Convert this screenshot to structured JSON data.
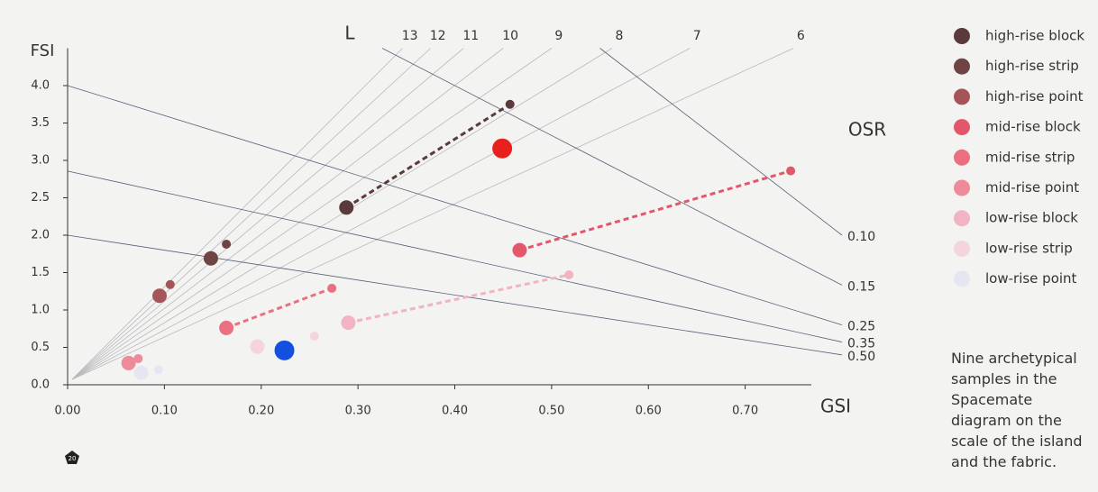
{
  "chart_data": {
    "type": "scatter",
    "x_label": "GSI",
    "y_label": "FSI",
    "l_label": "L",
    "osr_label": "OSR",
    "xlim": [
      0,
      0.8
    ],
    "ylim": [
      0,
      4.5
    ],
    "xticks": [
      {
        "value": 0,
        "label": "0.00"
      },
      {
        "value": 0.1,
        "label": "0.10"
      },
      {
        "value": 0.2,
        "label": "0.20"
      },
      {
        "value": 0.3,
        "label": "0.30"
      },
      {
        "value": 0.4,
        "label": "0.40"
      },
      {
        "value": 0.5,
        "label": "0.50"
      },
      {
        "value": 0.6,
        "label": "0.60"
      },
      {
        "value": 0.7,
        "label": "0.70"
      }
    ],
    "yticks": [
      {
        "value": 0,
        "label": "0.0"
      },
      0.5,
      {
        "value": 1,
        "label": "1.0"
      },
      1.5,
      {
        "value": 2,
        "label": "2.0"
      },
      2.5,
      {
        "value": 3,
        "label": "3.0"
      },
      3.5,
      {
        "value": 4,
        "label": "4.0"
      }
    ],
    "l_lines": [
      13,
      12,
      11,
      10,
      9,
      8,
      7,
      6
    ],
    "osr_lines": [
      {
        "value": 0.1,
        "label": "0.10"
      },
      {
        "value": 0.15,
        "label": "0.15"
      },
      {
        "value": 0.25,
        "label": "0.25"
      },
      {
        "value": 0.35,
        "label": "0.35"
      },
      {
        "value": 0.5,
        "label": "0.50"
      }
    ],
    "series": [
      {
        "name": "high-rise block",
        "color": "#5b3a3b",
        "x": [
          0.288,
          0.457
        ],
        "values": [
          2.37,
          3.75
        ],
        "dashed": true
      },
      {
        "name": "high-rise strip",
        "color": "#6e4444",
        "x": [
          0.148,
          0.164
        ],
        "values": [
          1.69,
          1.88
        ],
        "dashed": false
      },
      {
        "name": "high-rise point",
        "color": "#a55557",
        "x": [
          0.095,
          0.106
        ],
        "values": [
          1.19,
          1.34
        ],
        "dashed": false
      },
      {
        "name": "mid-rise block",
        "color": "#e4566a",
        "x": [
          0.467,
          0.747
        ],
        "values": [
          1.8,
          2.86
        ],
        "dashed": true
      },
      {
        "name": "mid-rise strip",
        "color": "#ea6f80",
        "x": [
          0.164,
          0.273
        ],
        "values": [
          0.76,
          1.29
        ],
        "dashed": true
      },
      {
        "name": "mid-rise point",
        "color": "#ee8b9b",
        "x": [
          0.063,
          0.073
        ],
        "values": [
          0.29,
          0.35
        ],
        "dashed": false
      },
      {
        "name": "low-rise block",
        "color": "#f2b3c3",
        "x": [
          0.29,
          0.518
        ],
        "values": [
          0.83,
          1.47
        ],
        "dashed": true
      },
      {
        "name": "low-rise strip",
        "color": "#f4d5dc",
        "x": [
          0.196,
          0.255
        ],
        "values": [
          0.51,
          0.65
        ],
        "dashed": false
      },
      {
        "name": "low-rise point",
        "color": "#e6e6f2",
        "x": [
          0.076,
          0.094
        ],
        "values": [
          0.16,
          0.2
        ],
        "dashed": false
      }
    ],
    "highlights": [
      {
        "color": "#e8201e",
        "x": 0.449,
        "y": 3.16
      },
      {
        "color": "#1450e0",
        "x": 0.224,
        "y": 0.46
      }
    ],
    "caption": "Nine archetypical samples in the Spacemate diagram on the scale of the island and the fabric.",
    "page_number": "20"
  }
}
